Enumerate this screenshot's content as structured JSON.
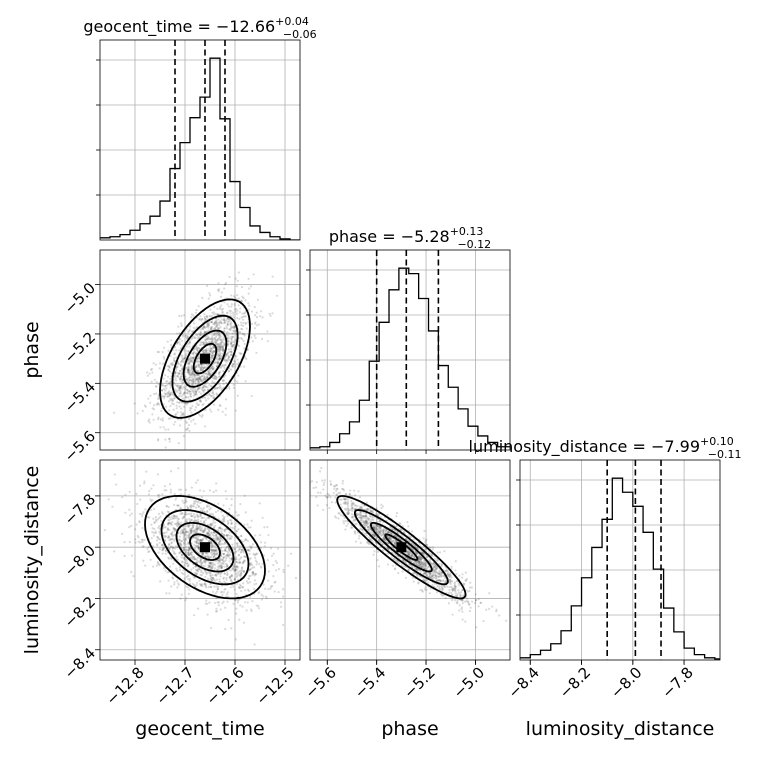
{
  "chart_data": {
    "type": "corner",
    "parameters": [
      "geocent_time",
      "phase",
      "luminosity_distance"
    ],
    "titles": [
      {
        "param": "geocent_time",
        "prefix": "geocent_time = ",
        "median": "−12.66",
        "plus": "+0.04",
        "minus": "−0.06"
      },
      {
        "param": "phase",
        "prefix": "phase = ",
        "median": "−5.28",
        "plus": "+0.13",
        "minus": "−0.12"
      },
      {
        "param": "luminosity_distance",
        "prefix": "luminosity_distance = ",
        "median": "−7.99",
        "plus": "+0.10",
        "minus": "−0.11"
      }
    ],
    "axis_labels": {
      "x": [
        "geocent_time",
        "phase",
        "luminosity_distance"
      ],
      "y": [
        "phase",
        "luminosity_distance"
      ]
    },
    "ranges": {
      "geocent_time": [
        -12.87,
        -12.47
      ],
      "phase": [
        -5.67,
        -4.86
      ],
      "luminosity_distance": [
        -8.44,
        -7.66
      ]
    },
    "ticks": {
      "geocent_time": [
        -12.8,
        -12.7,
        -12.6,
        -12.5
      ],
      "phase": [
        -5.6,
        -5.4,
        -5.2,
        -5.0
      ],
      "luminosity_distance": [
        -8.4,
        -8.2,
        -8.0,
        -7.8
      ]
    },
    "tick_labels": {
      "geocent_time": [
        "−12.8",
        "−12.7",
        "−12.6",
        "−12.5"
      ],
      "phase": [
        "−5.6",
        "−5.4",
        "−5.2",
        "−5.0"
      ],
      "luminosity_distance": [
        "−8.4",
        "−8.2",
        "−8.0",
        "−7.8"
      ]
    },
    "quantiles": {
      "geocent_time": [
        -12.72,
        -12.66,
        -12.62
      ],
      "phase": [
        -5.4,
        -5.28,
        -5.15
      ],
      "luminosity_distance": [
        -8.1,
        -7.99,
        -7.89
      ]
    },
    "histograms": {
      "geocent_time": {
        "edges": [
          -12.87,
          -12.85,
          -12.83,
          -12.81,
          -12.79,
          -12.77,
          -12.75,
          -12.73,
          -12.71,
          -12.69,
          -12.67,
          -12.65,
          -12.63,
          -12.61,
          -12.59,
          -12.57,
          -12.55,
          -12.53,
          -12.51,
          -12.49,
          -12.47
        ],
        "counts": [
          2,
          3,
          5,
          9,
          15,
          22,
          36,
          66,
          90,
          113,
          132,
          168,
          112,
          54,
          30,
          13,
          7,
          3,
          1,
          0
        ]
      },
      "phase": {
        "edges": [
          -5.67,
          -5.63,
          -5.59,
          -5.55,
          -5.51,
          -5.47,
          -5.43,
          -5.39,
          -5.35,
          -5.31,
          -5.27,
          -5.23,
          -5.19,
          -5.15,
          -5.11,
          -5.07,
          -5.03,
          -4.99,
          -4.95,
          -4.91,
          -4.86
        ],
        "counts": [
          2,
          3,
          7,
          15,
          26,
          46,
          82,
          118,
          148,
          168,
          163,
          140,
          110,
          78,
          58,
          38,
          22,
          13,
          7,
          3
        ]
      },
      "luminosity_distance": {
        "edges": [
          -8.44,
          -8.4,
          -8.36,
          -8.32,
          -8.28,
          -8.24,
          -8.2,
          -8.16,
          -8.12,
          -8.08,
          -8.04,
          -8.0,
          -7.96,
          -7.92,
          -7.88,
          -7.84,
          -7.8,
          -7.76,
          -7.72,
          -7.68,
          -7.66
        ],
        "counts": [
          2,
          5,
          9,
          15,
          27,
          50,
          76,
          104,
          130,
          168,
          155,
          142,
          118,
          84,
          48,
          26,
          11,
          5,
          2,
          1
        ]
      }
    },
    "pairs": [
      {
        "x": "geocent_time",
        "y": "phase",
        "center": [
          -12.66,
          -5.3
        ],
        "sd": [
          0.045,
          0.12
        ],
        "corr": 0.55
      },
      {
        "x": "geocent_time",
        "y": "luminosity_distance",
        "center": [
          -12.66,
          -8.0
        ],
        "sd": [
          0.06,
          0.1
        ],
        "corr": -0.45
      },
      {
        "x": "phase",
        "y": "luminosity_distance",
        "center": [
          -5.3,
          -8.0
        ],
        "sd": [
          0.13,
          0.1
        ],
        "corr": -0.92
      }
    ]
  }
}
